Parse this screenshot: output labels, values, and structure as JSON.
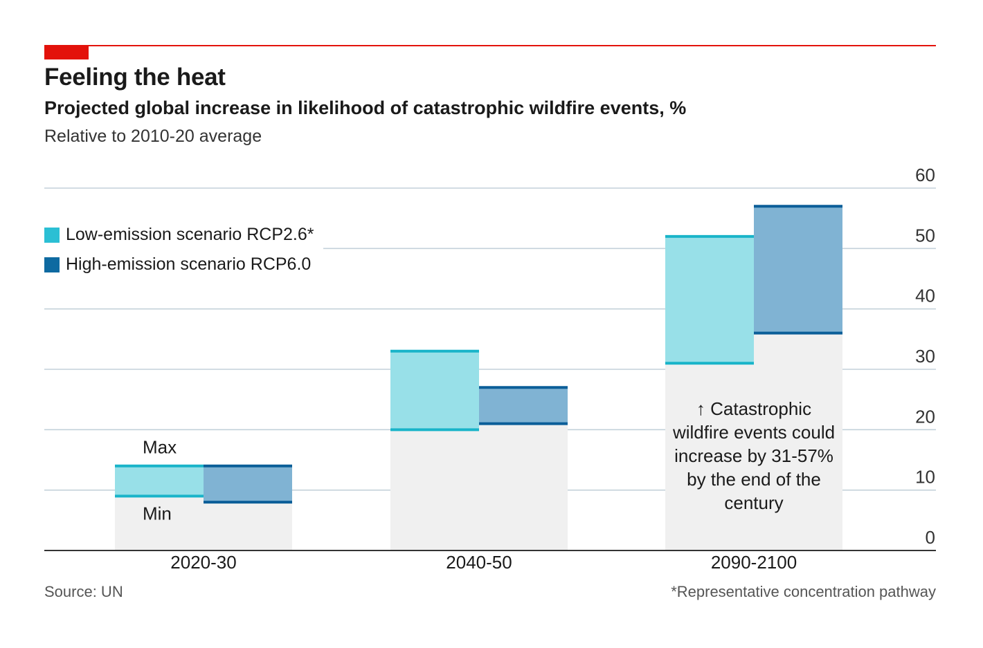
{
  "header": {
    "title": "Feeling the heat",
    "subtitle": "Projected global increase in likelihood of catastrophic wildfire events, %",
    "note": "Relative to 2010-20 average"
  },
  "legend": [
    {
      "label": "Low-emission scenario RCP2.6*",
      "color": "#2bbfd4"
    },
    {
      "label": "High-emission scenario RCP6.0",
      "color": "#0e6aa1"
    }
  ],
  "annotations": {
    "max_label": "Max",
    "min_label": "Min",
    "callout_arrow": "↑",
    "callout": "Catastrophic wildfire events could increase by 31-57% by the end of the century"
  },
  "footer": {
    "source": "Source: UN",
    "footnote": "*Representative concentration pathway"
  },
  "colors": {
    "low_fill": "#98e0e8",
    "low_line": "#19b4c9",
    "high_fill": "#80b3d3",
    "high_line": "#0b5e98",
    "base_fill": "#f0f0f0",
    "grid": "#c3d1da",
    "axis": "#333333"
  },
  "chart_data": {
    "type": "bar",
    "subtype": "range",
    "title": "Feeling the heat",
    "ylabel": "Projected global increase in likelihood of catastrophic wildfire events, %",
    "categories": [
      "2020-30",
      "2040-50",
      "2090-2100"
    ],
    "series": [
      {
        "name": "Low-emission scenario RCP2.6*",
        "min": [
          9,
          20,
          31
        ],
        "max": [
          14,
          33,
          52
        ]
      },
      {
        "name": "High-emission scenario RCP6.0",
        "min": [
          8,
          21,
          36
        ],
        "max": [
          14,
          27,
          57
        ]
      }
    ],
    "ylim": [
      0,
      60
    ],
    "yticks": [
      0,
      10,
      20,
      30,
      40,
      50,
      60
    ],
    "ytick_labels": [
      "0",
      "10",
      "20",
      "30",
      "40",
      "50",
      "60"
    ],
    "y_axis_side": "right",
    "grid": true
  }
}
